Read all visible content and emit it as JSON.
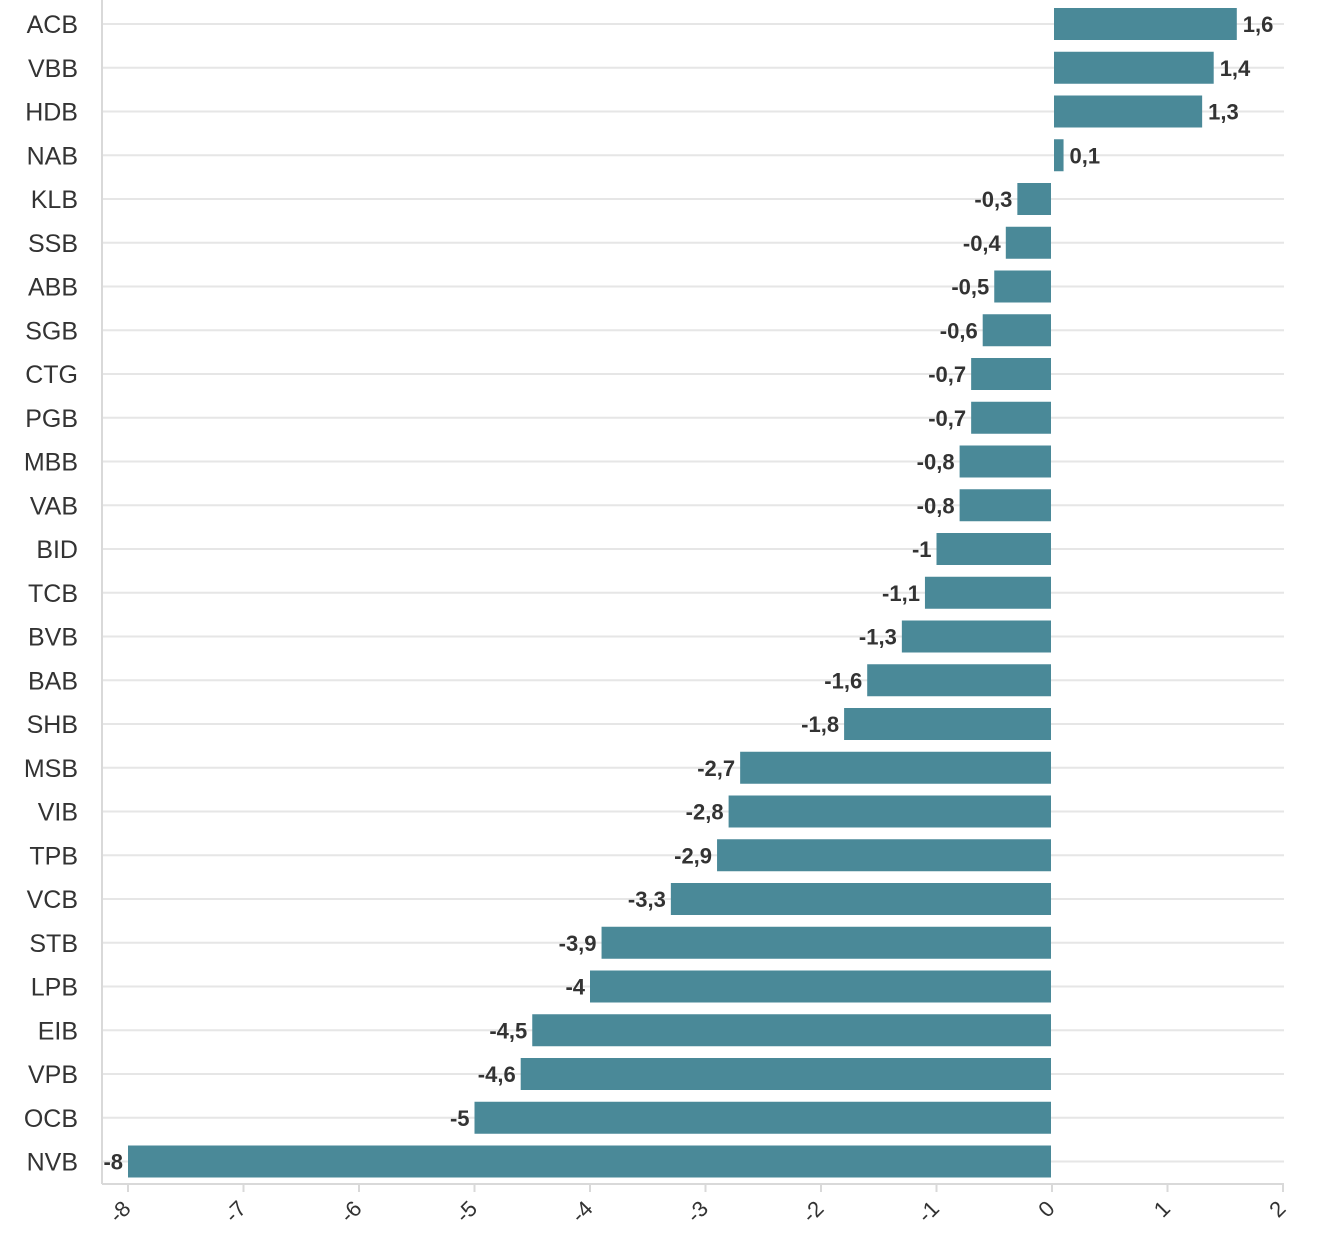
{
  "chart_data": {
    "type": "bar",
    "orientation": "horizontal",
    "categories": [
      "ACB",
      "VBB",
      "HDB",
      "NAB",
      "KLB",
      "SSB",
      "ABB",
      "SGB",
      "CTG",
      "PGB",
      "MBB",
      "VAB",
      "BID",
      "TCB",
      "BVB",
      "BAB",
      "SHB",
      "MSB",
      "VIB",
      "TPB",
      "VCB",
      "STB",
      "LPB",
      "EIB",
      "VPB",
      "OCB",
      "NVB"
    ],
    "values": [
      1.6,
      1.4,
      1.3,
      0.1,
      -0.3,
      -0.4,
      -0.5,
      -0.6,
      -0.7,
      -0.7,
      -0.8,
      -0.8,
      -1,
      -1.1,
      -1.3,
      -1.6,
      -1.8,
      -2.7,
      -2.8,
      -2.9,
      -3.3,
      -3.9,
      -4,
      -4.5,
      -4.6,
      -5,
      -8
    ],
    "value_labels": [
      "1,6",
      "1,4",
      "1,3",
      "0,1",
      "-0,3",
      "-0,4",
      "-0,5",
      "-0,6",
      "-0,7",
      "-0,7",
      "-0,8",
      "-0,8",
      "-1",
      "-1,1",
      "-1,3",
      "-1,6",
      "-1,8",
      "-2,7",
      "-2,8",
      "-2,9",
      "-3,3",
      "-3,9",
      "-4",
      "-4,5",
      "-4,6",
      "-5",
      "-8"
    ],
    "xticks": [
      -8,
      -7,
      -6,
      -5,
      -4,
      -3,
      -2,
      -1,
      0,
      1,
      2
    ],
    "xlim": [
      -8.25,
      2
    ],
    "title": "",
    "xlabel": "",
    "ylabel": "",
    "grid": true,
    "bar_color": "#4a8998"
  }
}
